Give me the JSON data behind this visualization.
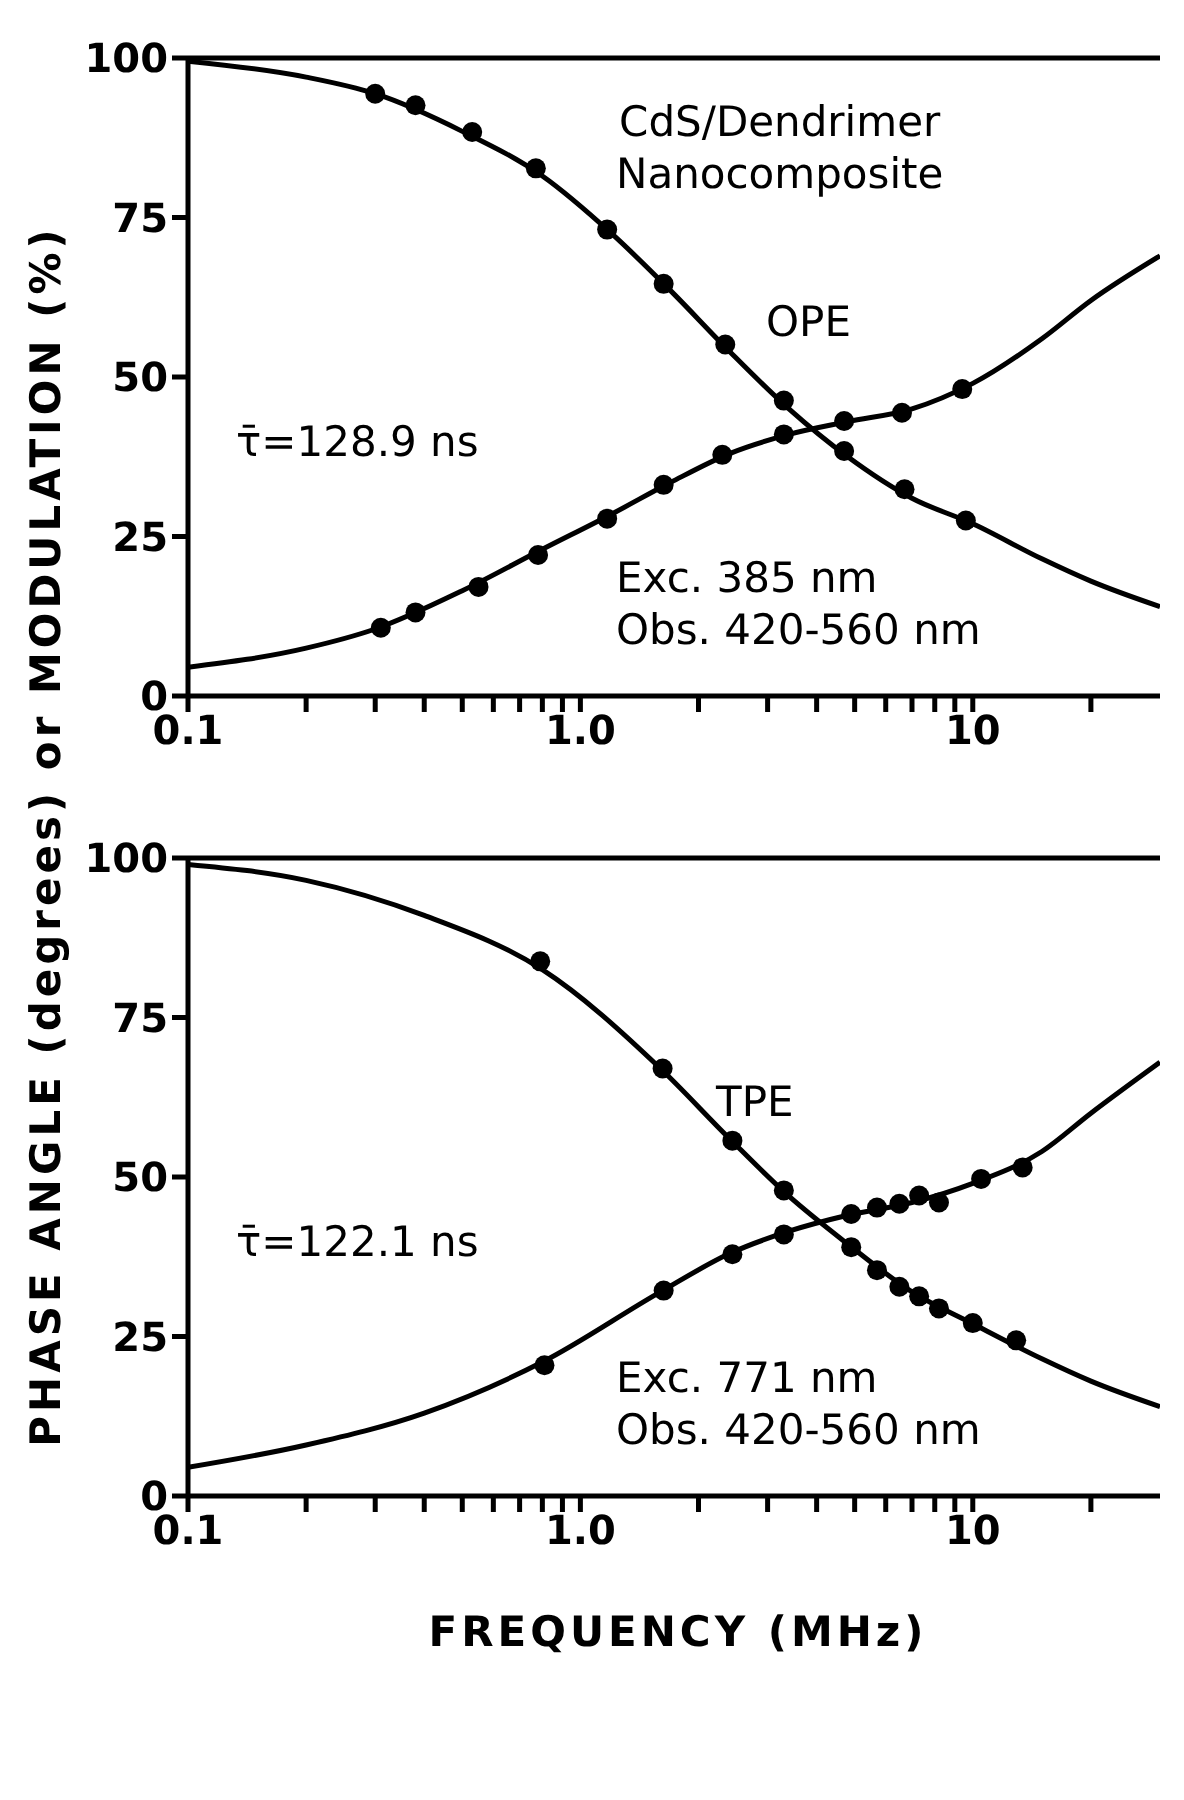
{
  "chart_data": [
    {
      "type": "scatter",
      "ylabel": "PHASE ANGLE (degrees) or MODULATION (%)",
      "log": "x",
      "marker": "circle",
      "grid": false,
      "legend": false,
      "xlim": [
        0.1,
        30
      ],
      "ylim": [
        0,
        100
      ],
      "yticks": [
        0,
        25,
        50,
        75,
        100
      ],
      "xticks": [
        {
          "value": 0.1,
          "label": "0.1"
        },
        {
          "value": 0.2,
          "label": null
        },
        {
          "value": 0.3,
          "label": null
        },
        {
          "value": 0.4,
          "label": null
        },
        {
          "value": 0.5,
          "label": null
        },
        {
          "value": 0.6,
          "label": null
        },
        {
          "value": 0.7,
          "label": null
        },
        {
          "value": 0.8,
          "label": null
        },
        {
          "value": 0.9,
          "label": null
        },
        {
          "value": 1,
          "label": "1.0"
        },
        {
          "value": 2,
          "label": null
        },
        {
          "value": 3,
          "label": null
        },
        {
          "value": 4,
          "label": null
        },
        {
          "value": 5,
          "label": null
        },
        {
          "value": 6,
          "label": null
        },
        {
          "value": 7,
          "label": null
        },
        {
          "value": 8,
          "label": null
        },
        {
          "value": 9,
          "label": null
        },
        {
          "value": 10,
          "label": "10"
        },
        {
          "value": 20,
          "label": null
        }
      ],
      "annotations": [
        "CdS/Dendrimer\nNanocomposite",
        "OPE",
        "τ̄=128.9 ns",
        "Exc. 385 nm\nObs. 420-560 nm"
      ],
      "series": [
        {
          "type": "scatter",
          "color": "#000000",
          "x": [
            0.3,
            0.38,
            0.53,
            0.77,
            1.17,
            1.63,
            2.34,
            3.3,
            4.7,
            6.7,
            9.6
          ],
          "values": [
            94.4,
            92.6,
            88.4,
            82.7,
            73.1,
            64.6,
            55.1,
            46.3,
            38.4,
            32.4,
            27.5
          ]
        },
        {
          "type": "scatter",
          "color": "#000000",
          "x": [
            0.31,
            0.38,
            0.55,
            0.78,
            1.17,
            1.63,
            2.3,
            3.3,
            4.7,
            6.6,
            9.4
          ],
          "values": [
            10.7,
            13.1,
            17.1,
            22.1,
            27.8,
            33.1,
            37.8,
            41.0,
            43.1,
            44.4,
            48.1
          ]
        },
        {
          "type": "line",
          "marker": "none",
          "color": "#000000",
          "x": [
            0.1,
            0.2,
            0.3,
            0.5,
            0.8,
            1.2,
            1.7,
            2.4,
            3.4,
            4.8,
            7,
            10,
            15,
            20,
            30
          ],
          "values": [
            99.5,
            97,
            94.4,
            88.5,
            81.5,
            72.5,
            63.5,
            54,
            45,
            37.5,
            31,
            27,
            21.5,
            18,
            14
          ]
        },
        {
          "type": "line",
          "marker": "none",
          "color": "#000000",
          "x": [
            0.1,
            0.2,
            0.3,
            0.5,
            0.8,
            1.2,
            1.7,
            2.4,
            3.4,
            4.8,
            7,
            10,
            15,
            20,
            30
          ],
          "values": [
            4.5,
            7.5,
            10.5,
            16.5,
            23,
            28.5,
            33.5,
            38,
            41,
            43,
            45,
            49,
            56,
            62,
            69
          ]
        }
      ]
    },
    {
      "type": "scatter",
      "xlabel": "FREQUENCY (MHz)",
      "log": "x",
      "marker": "circle",
      "grid": false,
      "legend": false,
      "xlim": [
        0.1,
        30
      ],
      "ylim": [
        0,
        100
      ],
      "yticks": [
        0,
        25,
        50,
        75,
        100
      ],
      "xticks": [
        {
          "value": 0.1,
          "label": "0.1"
        },
        {
          "value": 0.2,
          "label": null
        },
        {
          "value": 0.3,
          "label": null
        },
        {
          "value": 0.4,
          "label": null
        },
        {
          "value": 0.5,
          "label": null
        },
        {
          "value": 0.6,
          "label": null
        },
        {
          "value": 0.7,
          "label": null
        },
        {
          "value": 0.8,
          "label": null
        },
        {
          "value": 0.9,
          "label": null
        },
        {
          "value": 1,
          "label": "1.0"
        },
        {
          "value": 2,
          "label": null
        },
        {
          "value": 3,
          "label": null
        },
        {
          "value": 4,
          "label": null
        },
        {
          "value": 5,
          "label": null
        },
        {
          "value": 6,
          "label": null
        },
        {
          "value": 7,
          "label": null
        },
        {
          "value": 8,
          "label": null
        },
        {
          "value": 9,
          "label": null
        },
        {
          "value": 10,
          "label": "10"
        },
        {
          "value": 20,
          "label": null
        }
      ],
      "annotations": [
        "TPE",
        "τ̄=122.1 ns",
        "Exc. 771 nm\nObs. 420-560 nm"
      ],
      "series": [
        {
          "type": "scatter",
          "color": "#000000",
          "x": [
            0.79,
            1.62,
            2.44,
            3.3,
            4.9,
            5.7,
            6.5,
            7.3,
            8.2,
            10.0,
            12.9
          ],
          "values": [
            83.8,
            67.0,
            55.7,
            47.9,
            39.0,
            35.4,
            32.8,
            31.3,
            29.4,
            27.1,
            24.4
          ]
        },
        {
          "type": "scatter",
          "color": "#000000",
          "x": [
            0.81,
            1.63,
            2.44,
            3.3,
            4.9,
            5.7,
            6.5,
            7.3,
            8.2,
            10.5,
            13.4
          ],
          "values": [
            20.5,
            32.2,
            37.9,
            41.0,
            44.2,
            45.2,
            45.8,
            47.1,
            46.0,
            49.7,
            51.5
          ]
        },
        {
          "type": "line",
          "marker": "none",
          "color": "#000000",
          "x": [
            0.1,
            0.2,
            0.4,
            0.8,
            1.6,
            2.4,
            3.4,
            4.8,
            7,
            10,
            15,
            20,
            30
          ],
          "values": [
            99,
            96.5,
            91,
            82.5,
            67,
            56,
            47,
            39.5,
            32,
            27,
            21.5,
            18,
            14
          ]
        },
        {
          "type": "line",
          "marker": "none",
          "color": "#000000",
          "x": [
            0.1,
            0.2,
            0.4,
            0.8,
            1.6,
            2.4,
            3.4,
            4.8,
            7,
            10,
            15,
            20,
            30
          ],
          "values": [
            4.5,
            8,
            13,
            21,
            32,
            38,
            41.5,
            44,
            46,
            49,
            54,
            60,
            68
          ]
        }
      ]
    }
  ]
}
